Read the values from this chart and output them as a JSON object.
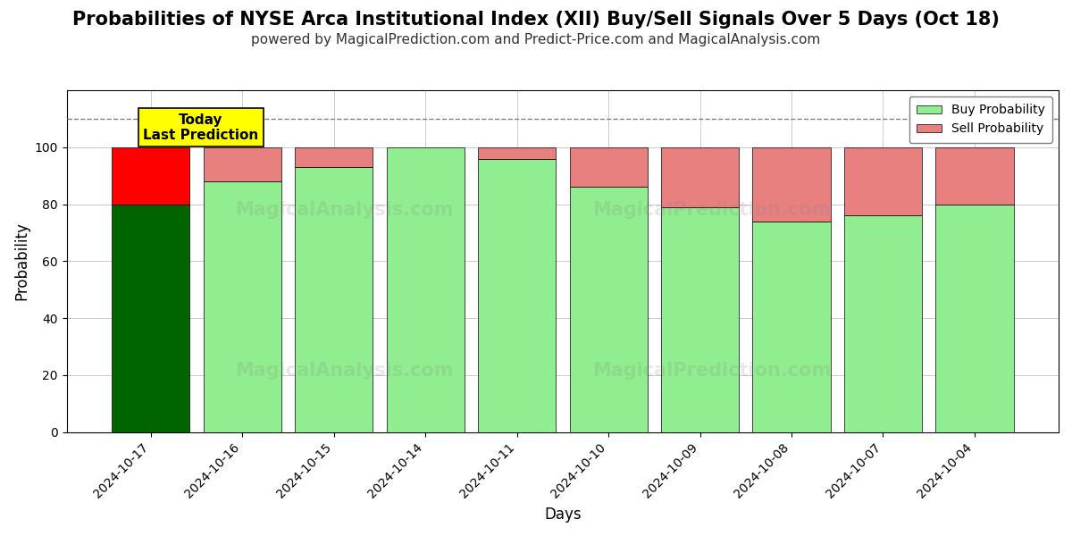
{
  "title": "Probabilities of NYSE Arca Institutional Index (XII) Buy/Sell Signals Over 5 Days (Oct 18)",
  "subtitle": "powered by MagicalPrediction.com and Predict-Price.com and MagicalAnalysis.com",
  "xlabel": "Days",
  "ylabel": "Probability",
  "dates": [
    "2024-10-17",
    "2024-10-16",
    "2024-10-15",
    "2024-10-14",
    "2024-10-11",
    "2024-10-10",
    "2024-10-09",
    "2024-10-08",
    "2024-10-07",
    "2024-10-04"
  ],
  "buy_values": [
    80,
    88,
    93,
    100,
    96,
    86,
    79,
    74,
    76,
    80
  ],
  "sell_values": [
    20,
    12,
    7,
    0,
    4,
    14,
    21,
    26,
    24,
    20
  ],
  "today_buy_color": "#006400",
  "today_sell_color": "#FF0000",
  "buy_color": "#90EE90",
  "sell_color": "#E88080",
  "ylim": [
    0,
    120
  ],
  "yticks": [
    0,
    20,
    40,
    60,
    80,
    100
  ],
  "dashed_line_y": 110,
  "today_annotation_text": "Today\nLast Prediction",
  "today_annotation_bg": "#FFFF00",
  "background_color": "#FFFFFF",
  "grid_color": "#CCCCCC",
  "title_fontsize": 15,
  "subtitle_fontsize": 11,
  "legend_entries": [
    "Buy Probability",
    "Sell Probability"
  ],
  "legend_colors": [
    "#90EE90",
    "#E88080"
  ],
  "bar_width": 0.85
}
